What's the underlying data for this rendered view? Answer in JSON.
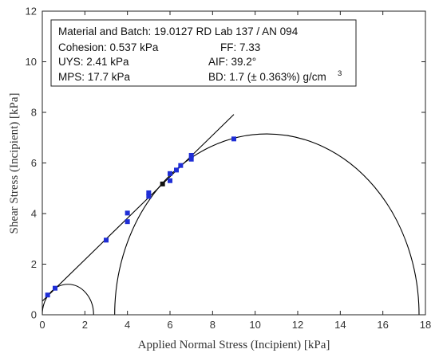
{
  "chart_data": {
    "type": "scatter",
    "xlabel": "Applied Normal Stress (Incipient) [kPa]",
    "ylabel": "Shear Stress (Incipient) [kPa]",
    "xlim": [
      0,
      18
    ],
    "ylim": [
      0,
      12
    ],
    "xticks": [
      "0",
      "2",
      "4",
      "6",
      "8",
      "10",
      "12",
      "14",
      "16",
      "18"
    ],
    "yticks": [
      "0",
      "2",
      "4",
      "6",
      "8",
      "10",
      "12"
    ],
    "grid": false,
    "colors": {
      "points": "#1f2ed6",
      "lines": "#000000",
      "special_point": "#111111"
    },
    "info_box": {
      "title": "Material and Batch: 19.0127 RD Lab 137 / AN 094",
      "cohesion": "Cohesion: 0.537 kPa",
      "ff": "FF: 7.33",
      "uys": "UYS: 2.41 kPa",
      "aif": "AIF: 39.2°",
      "mps": "MPS: 17.7 kPa",
      "bd_main": "BD: 1.7 (± 0.363%) g/cm",
      "bd_sup": "3"
    },
    "series": [
      {
        "marker": "square",
        "points": [
          [
            0.25,
            0.78
          ],
          [
            0.6,
            1.05
          ],
          [
            3.0,
            2.95
          ],
          [
            4.0,
            3.68
          ],
          [
            4.0,
            4.02
          ],
          [
            5.0,
            4.68
          ],
          [
            5.0,
            4.82
          ],
          [
            6.0,
            5.3
          ],
          [
            6.0,
            5.58
          ],
          [
            6.3,
            5.72
          ],
          [
            6.5,
            5.9
          ],
          [
            7.0,
            6.15
          ],
          [
            7.0,
            6.3
          ],
          [
            9.0,
            6.95
          ]
        ]
      },
      {
        "marker": "square",
        "points": [
          [
            5.65,
            5.17
          ]
        ]
      }
    ],
    "failure_line": {
      "x_start": 0,
      "x_end": 9.0,
      "intercept": 0.537,
      "slope": 0.82
    },
    "mohr_circles": [
      {
        "sigma_min": 0,
        "sigma_max": 2.41
      },
      {
        "sigma_min": 3.4,
        "sigma_max": 17.7
      }
    ]
  }
}
